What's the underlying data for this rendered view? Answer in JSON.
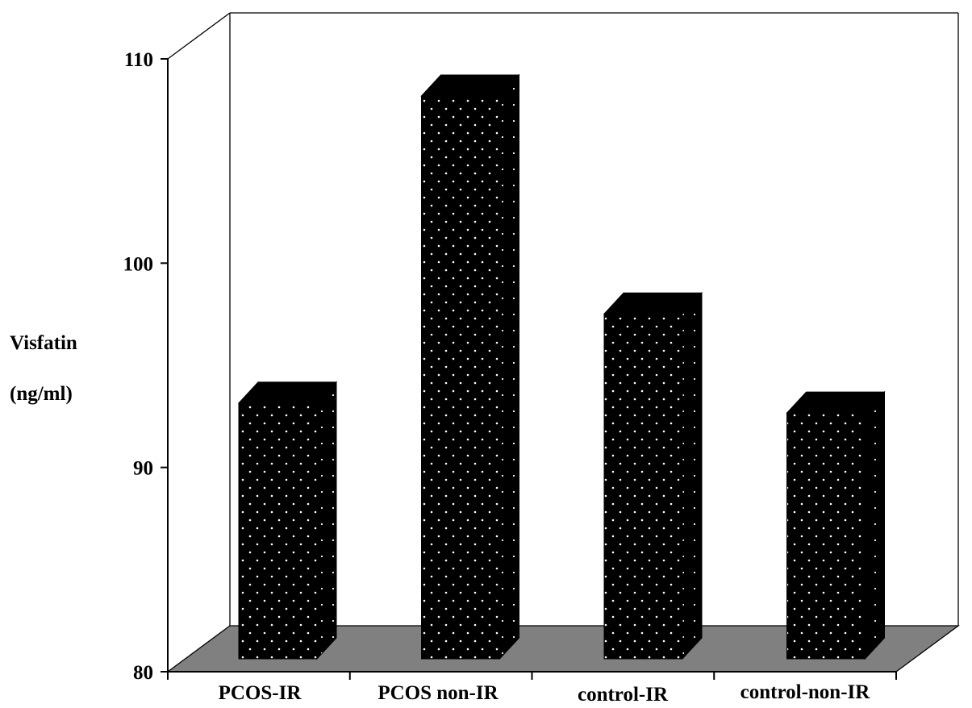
{
  "chart_data": {
    "type": "bar",
    "ylabel_lines": [
      "Visfatin",
      "(ng/ml)"
    ],
    "categories": [
      "PCOS-IR",
      "PCOS non-IR",
      "control-IR",
      "control-non-IR"
    ],
    "values": [
      92.5,
      108,
      97,
      92
    ],
    "ylim": [
      80,
      110
    ],
    "yticks": [
      80,
      90,
      100,
      110
    ],
    "style": "3d",
    "bar_color": "#000000",
    "floor_color": "#808080",
    "grid": false,
    "legend": "none"
  }
}
